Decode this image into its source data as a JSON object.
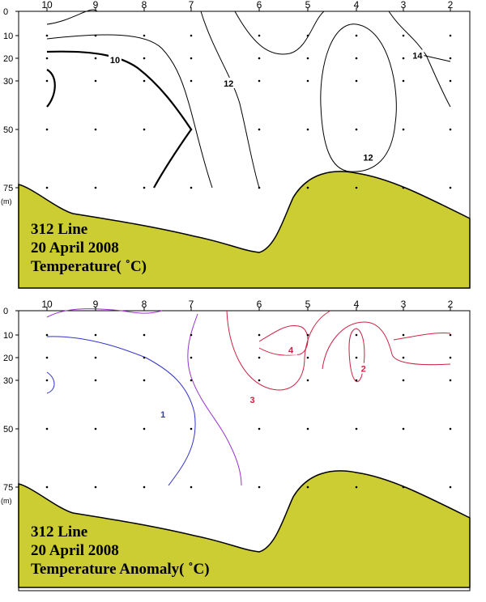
{
  "chart_data": [
    {
      "type": "contour",
      "title_lines": [
        "312 Line",
        "20 April 2008",
        "Temperature( ˚C)"
      ],
      "x_ticks": [
        "10",
        "9",
        "8",
        "7",
        "6",
        "5",
        "4",
        "3",
        "2"
      ],
      "y_ticks": [
        0,
        10,
        20,
        30,
        50,
        75
      ],
      "y_unit": "(m)",
      "sample_depths": [
        10,
        20,
        30,
        50,
        75
      ],
      "colors": {
        "bathymetry": "#cccc33",
        "contour": "#000000"
      },
      "contours": [
        {
          "level": "10",
          "color": "#000000",
          "labels": [
            {
              "station": 8.6,
              "depth": 21
            }
          ]
        },
        {
          "level": "12",
          "color": "#000000",
          "labels": [
            {
              "station": 6.45,
              "depth": 31
            },
            {
              "station": 3.75,
              "depth": 62
            }
          ]
        },
        {
          "level": "14",
          "color": "#000000",
          "labels": [
            {
              "station": 2.7,
              "depth": 19
            }
          ]
        }
      ]
    },
    {
      "type": "contour",
      "title_lines": [
        "312 Line",
        "20 April 2008",
        "Temperature Anomaly( ˚C)"
      ],
      "x_ticks": [
        "10",
        "9",
        "8",
        "7",
        "6",
        "5",
        "4",
        "3",
        "2"
      ],
      "y_ticks": [
        0,
        10,
        20,
        30,
        50,
        75
      ],
      "y_unit": "(m)",
      "sample_depths": [
        10,
        20,
        30,
        50,
        75
      ],
      "colors": {
        "bathymetry": "#cccc33",
        "anomaly_low": "#3333cc",
        "anomaly_mid": "#9933cc",
        "anomaly_high": "#cc2244"
      },
      "contours": [
        {
          "level": "1",
          "color": "#3333cc",
          "labels": [
            {
              "station": 7.6,
              "depth": 44
            }
          ]
        },
        {
          "level": "2",
          "color": "#cc2244",
          "labels": [
            {
              "station": 3.85,
              "depth": 25
            }
          ]
        },
        {
          "level": "3",
          "color": "#cc2244",
          "labels": [
            {
              "station": 6.1,
              "depth": 38
            }
          ]
        },
        {
          "level": "4",
          "color": "#cc2244",
          "labels": [
            {
              "station": 5.35,
              "depth": 17
            }
          ]
        }
      ]
    }
  ]
}
